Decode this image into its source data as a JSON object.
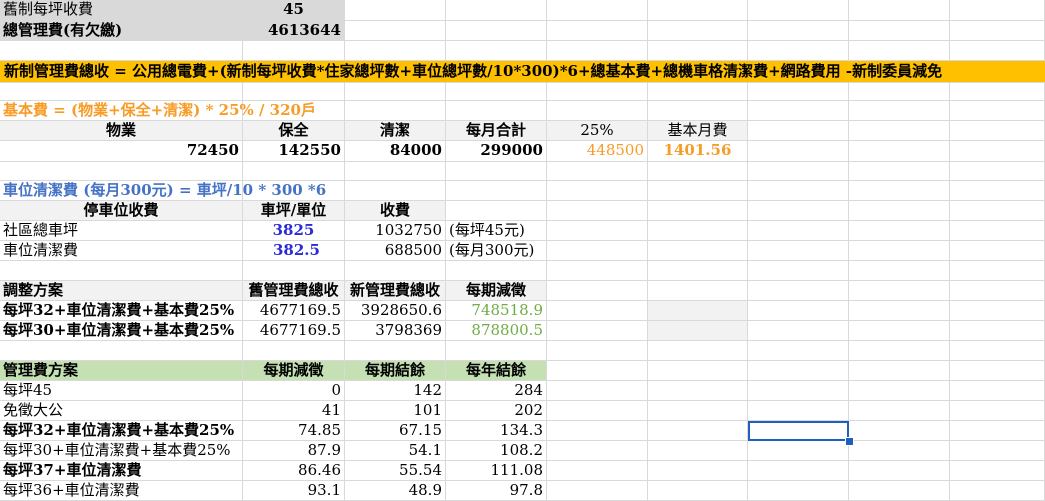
{
  "row1": {
    "label": "舊制每坪收費",
    "value": "45"
  },
  "row2": {
    "label": "總管理費(有欠繳)",
    "value": "4613644"
  },
  "formula_banner": "新制管理費總收 = 公用總電費+(新制每坪收費*住家總坪數+車位總坪數/10*300)*6+總基本費+總機車格清潔費+網路費用 -新制委員減免",
  "basic_fee": {
    "title": "基本費 = (物業+保全+清潔)  * 25% / 320戶",
    "headers": [
      "物業",
      "保全",
      "清潔",
      "每月合計",
      "25%",
      "基本月費"
    ],
    "values": [
      "72450",
      "142550",
      "84000",
      "299000",
      "448500",
      "1401.56"
    ]
  },
  "parking": {
    "title": "車位清潔費 (每月300元)  = 車坪/10 * 300 *6",
    "headers": [
      "停車位收費",
      "車坪/單位",
      "收費"
    ],
    "rows": [
      {
        "label": "社區總車坪",
        "unit": "3825",
        "fee": "1032750",
        "note": "(每坪45元)"
      },
      {
        "label": "車位清潔費",
        "unit": "382.5",
        "fee": "688500",
        "note": "(每月300元)"
      }
    ]
  },
  "adjust": {
    "headers": [
      "調整方案",
      "舊管理費總收",
      "新管理費總收",
      "每期減徵"
    ],
    "rows": [
      {
        "label": "每坪32+車位清潔費+基本費25%",
        "old": "4677169.5",
        "new": "3928650.6",
        "diff": "748518.9"
      },
      {
        "label": "每坪30+車位清潔費+基本費25%",
        "old": "4677169.5",
        "new": "3798369",
        "diff": "878800.5"
      }
    ]
  },
  "plans": {
    "headers": [
      "管理費方案",
      "每期減徵",
      "每期結餘",
      "每年結餘"
    ],
    "rows": [
      {
        "label": "每坪45",
        "bold": false,
        "a": "0",
        "b": "142",
        "c": "284"
      },
      {
        "label": "免徵大公",
        "bold": false,
        "a": "41",
        "b": "101",
        "c": "202"
      },
      {
        "label": "每坪32+車位清潔費+基本費25%",
        "bold": true,
        "a": "74.85",
        "b": "67.15",
        "c": "134.3"
      },
      {
        "label": "每坪30+車位清潔費+基本費25%",
        "bold": false,
        "a": "87.9",
        "b": "54.1",
        "c": "108.2"
      },
      {
        "label": "每坪37+車位清潔費",
        "bold": true,
        "a": "86.46",
        "b": "55.54",
        "c": "111.08"
      },
      {
        "label": "每坪36+車位清潔費",
        "bold": false,
        "a": "93.1",
        "b": "48.9",
        "c": "97.8"
      }
    ]
  },
  "colors": {
    "banner": "#ffc000",
    "orange": "#f79c27",
    "blue": "#2b2bd6",
    "steel_blue": "#4472c4",
    "green_text": "#70ad47",
    "green_fill": "#c5e0b3",
    "selection": "#1f5fbf"
  }
}
